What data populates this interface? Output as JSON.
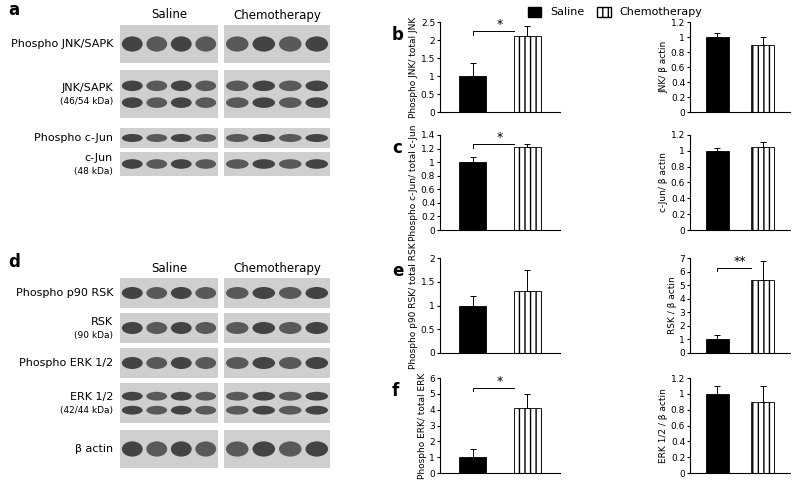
{
  "chart_data": [
    {
      "type": "bar",
      "panel": "b",
      "ylabel": "Phospho JNK/ total JNK",
      "ylim": [
        0,
        2.5
      ],
      "yticks": [
        0,
        0.5,
        1,
        1.5,
        2,
        2.5
      ],
      "tick_labels": "y",
      "legend": "upper center",
      "significance": "*",
      "series": [
        {
          "name": "Saline",
          "color": "#000000",
          "values": [
            1.0
          ],
          "errors": [
            0.35
          ]
        },
        {
          "name": "Chemotherapy",
          "color": "#ffffff",
          "values": [
            2.1
          ],
          "errors": [
            0.3
          ]
        }
      ]
    },
    {
      "type": "bar",
      "ylabel": "JNK/ β actin",
      "ylim": [
        0,
        1.2
      ],
      "yticks": [
        0,
        0.2,
        0.4,
        0.6,
        0.8,
        1,
        1.2
      ],
      "tick_labels": "y",
      "series": [
        {
          "name": "Saline",
          "color": "#000000",
          "values": [
            1.0
          ],
          "errors": [
            0.05
          ]
        },
        {
          "name": "Chemotherapy",
          "color": "#ffffff",
          "values": [
            0.9
          ],
          "errors": [
            0.1
          ]
        }
      ]
    },
    {
      "type": "bar",
      "panel": "c",
      "ylabel": "Phospho c-Jun/ total c-Jun",
      "ylim": [
        0,
        1.4
      ],
      "yticks": [
        0,
        0.2,
        0.4,
        0.6,
        0.8,
        1,
        1.2,
        1.4
      ],
      "tick_labels": "y",
      "significance": "*",
      "series": [
        {
          "name": "Saline",
          "color": "#000000",
          "values": [
            1.0
          ],
          "errors": [
            0.08
          ]
        },
        {
          "name": "Chemotherapy",
          "color": "#ffffff",
          "values": [
            1.23
          ],
          "errors": [
            0.03
          ]
        }
      ]
    },
    {
      "type": "bar",
      "ylabel": "c-Jun/ β actin",
      "ylim": [
        0,
        1.2
      ],
      "yticks": [
        0,
        0.2,
        0.4,
        0.6,
        0.8,
        1,
        1.2
      ],
      "tick_labels": "y",
      "series": [
        {
          "name": "Saline",
          "color": "#000000",
          "values": [
            1.0
          ],
          "errors": [
            0.03
          ]
        },
        {
          "name": "Chemotherapy",
          "color": "#ffffff",
          "values": [
            1.05
          ],
          "errors": [
            0.06
          ]
        }
      ]
    },
    {
      "type": "bar",
      "panel": "e",
      "ylabel": "Phospho p90 RSK/ total RSK",
      "ylim": [
        0,
        2
      ],
      "yticks": [
        0,
        0.5,
        1,
        1.5,
        2
      ],
      "tick_labels": "y",
      "series": [
        {
          "name": "Saline",
          "color": "#000000",
          "values": [
            1.0
          ],
          "errors": [
            0.2
          ]
        },
        {
          "name": "Chemotherapy",
          "color": "#ffffff",
          "values": [
            1.3
          ],
          "errors": [
            0.45
          ]
        }
      ]
    },
    {
      "type": "bar",
      "ylabel": "RSK / β actin",
      "ylim": [
        0,
        7
      ],
      "yticks": [
        0,
        1,
        2,
        3,
        4,
        5,
        6,
        7
      ],
      "tick_labels": "y",
      "significance": "**",
      "series": [
        {
          "name": "Saline",
          "color": "#000000",
          "values": [
            1.0
          ],
          "errors": [
            0.3
          ]
        },
        {
          "name": "Chemotherapy",
          "color": "#ffffff",
          "values": [
            5.4
          ],
          "errors": [
            1.4
          ]
        }
      ]
    },
    {
      "type": "bar",
      "panel": "f",
      "ylabel": "Phospho ERK/ total ERK",
      "ylim": [
        0,
        6
      ],
      "yticks": [
        0,
        1,
        2,
        3,
        4,
        5,
        6
      ],
      "tick_labels": "y",
      "significance": "*",
      "series": [
        {
          "name": "Saline",
          "color": "#000000",
          "values": [
            1.0
          ],
          "errors": [
            0.5
          ]
        },
        {
          "name": "Chemotherapy",
          "color": "#ffffff",
          "values": [
            4.1
          ],
          "errors": [
            0.9
          ]
        }
      ]
    },
    {
      "type": "bar",
      "ylabel": "ERK 1/2 / β actin",
      "ylim": [
        0,
        1.2
      ],
      "yticks": [
        0,
        0.2,
        0.4,
        0.6,
        0.8,
        1,
        1.2
      ],
      "tick_labels": "y",
      "series": [
        {
          "name": "Saline",
          "color": "#000000",
          "values": [
            1.0
          ],
          "errors": [
            0.1
          ]
        },
        {
          "name": "Chemotherapy",
          "color": "#ffffff",
          "values": [
            0.9
          ],
          "errors": [
            0.2
          ]
        }
      ]
    }
  ],
  "blots": [
    {
      "panel": "a",
      "groups": [
        "Saline",
        "Chemotherapy"
      ],
      "rows": [
        {
          "label": "Phospho JNK/SAPK"
        },
        {
          "label": "JNK/SAPK",
          "size": "(46/54 kDa)"
        },
        {
          "label": "Phospho c-Jun"
        },
        {
          "label": "c-Jun",
          "size": "(48 kDa)"
        }
      ]
    },
    {
      "panel": "d",
      "groups": [
        "Saline",
        "Chemotherapy"
      ],
      "rows": [
        {
          "label": "Phospho p90 RSK"
        },
        {
          "label": "RSK",
          "size": "(90 kDa)"
        },
        {
          "label": "Phospho ERK 1/2"
        },
        {
          "label": "ERK 1/2",
          "size": "(42/44 kDa)"
        },
        {
          "label": "β actin"
        }
      ]
    }
  ]
}
